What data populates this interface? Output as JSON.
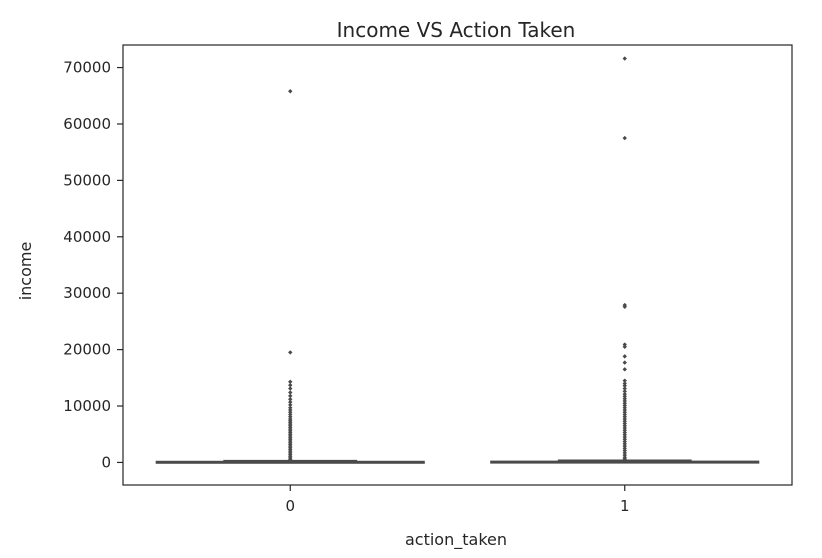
{
  "chart_data": {
    "type": "box",
    "title": "Income VS Action Taken",
    "xlabel": "action_taken",
    "ylabel": "income",
    "categories": [
      "0",
      "1"
    ],
    "ylim": [
      -4000,
      74000
    ],
    "yticks": [
      0,
      10000,
      20000,
      30000,
      40000,
      50000,
      60000,
      70000
    ],
    "ytick_labels": [
      "0",
      "10000",
      "20000",
      "30000",
      "40000",
      "50000",
      "60000",
      "70000"
    ],
    "grid": false,
    "boxes": [
      {
        "category": "0",
        "whisker_low": 0,
        "q1": 50,
        "median": 90,
        "q3": 160,
        "whisker_high": 320,
        "outliers": [
          65800,
          19500,
          14300,
          13700,
          13100,
          12400,
          11800,
          11200,
          10700,
          10200,
          9700,
          9300,
          8900,
          8500,
          8100,
          7700,
          7400,
          7100,
          6800,
          6500,
          6200,
          5900,
          5600,
          5300,
          5000,
          4700,
          4400,
          4100,
          3800,
          3500,
          3200,
          2900,
          2600,
          2300,
          2000,
          1700,
          1400,
          1100,
          800,
          550,
          400
        ]
      },
      {
        "category": "1",
        "whisker_low": 0,
        "q1": 60,
        "median": 110,
        "q3": 190,
        "whisker_high": 380,
        "outliers": [
          71600,
          57500,
          27900,
          27600,
          20900,
          20500,
          18800,
          17700,
          16500,
          14500,
          14000,
          13600,
          13100,
          12600,
          12100,
          11700,
          11300,
          10900,
          10500,
          10100,
          9700,
          9300,
          8900,
          8500,
          8100,
          7700,
          7300,
          6900,
          6500,
          6100,
          5700,
          5300,
          4900,
          4500,
          4100,
          3700,
          3300,
          2900,
          2500,
          2100,
          1700,
          1300,
          900,
          600,
          450
        ]
      }
    ],
    "colors": {
      "box_fill": "#4c72b0",
      "line": "#4a4a4a",
      "axis": "#262626",
      "text": "#262626"
    }
  }
}
